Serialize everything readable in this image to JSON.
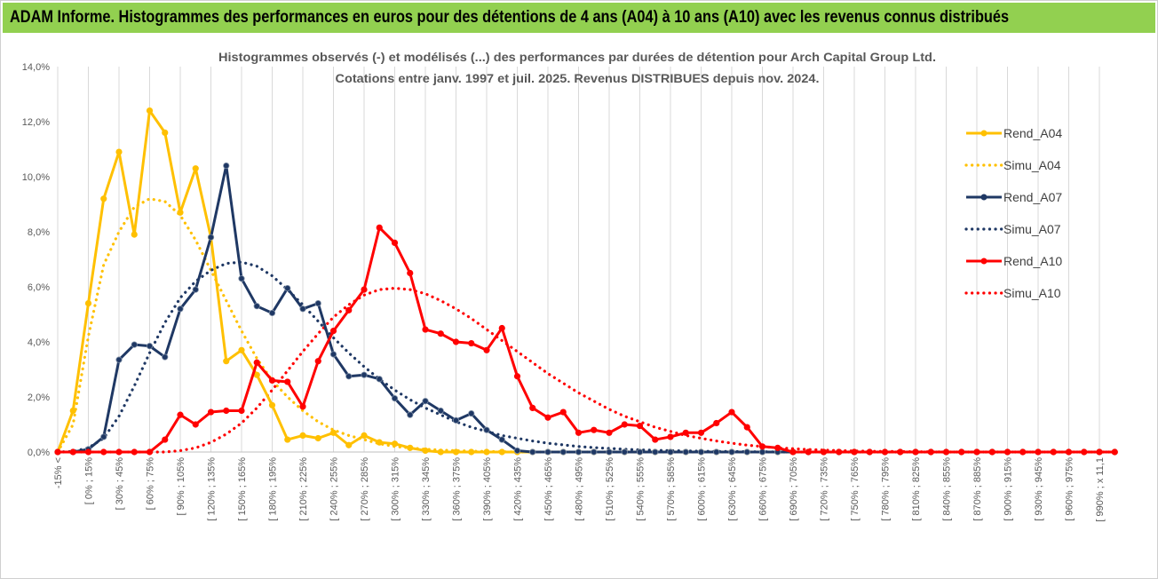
{
  "banner": {
    "title": "ADAM Informe. Histogrammes des performances en euros pour des détentions de 4 ans (A04) à 10 ans (A10) avec les revenus connus distribués"
  },
  "colors": {
    "banner_bg": "#92d050",
    "A04": "#ffc000",
    "A07": "#1f3864",
    "A10": "#ff0000",
    "grid": "#d9d9d9"
  },
  "chart_data": {
    "type": "line",
    "title": [
      "Histogrammes observés (-) et modélisés (...) des performances par durées de détention pour Arch Capital Group Ltd.",
      "Cotations entre janv. 1997 et juil. 2025. Revenus DISTRIBUES depuis nov. 2024."
    ],
    "xlabel": "",
    "ylabel": "",
    "ylim": [
      0,
      14
    ],
    "yticks": [
      "0,0%",
      "2,0%",
      "4,0%",
      "6,0%",
      "8,0%",
      "10,0%",
      "12,0%",
      "14,0%"
    ],
    "grid": "vertical",
    "legend_position": "right",
    "categories_labeled": [
      "-15% <",
      "[ 0% ; 15%",
      "[ 30% ; 45%",
      "[ 60% ; 75%",
      "[ 90% ; 105%",
      "[ 120% ; 135%",
      "[ 150% ; 165%",
      "[ 180% ; 195%",
      "[ 210% ; 225%",
      "[ 240% ; 255%",
      "[ 270% ; 285%",
      "[ 300% ; 315%",
      "[ 330% ; 345%",
      "[ 360% ; 375%",
      "[ 390% ; 405%",
      "[ 420% ; 435%",
      "[ 450% ; 465%",
      "[ 480% ; 495%",
      "[ 510% ; 525%",
      "[ 540% ; 555%",
      "[ 570% ; 585%",
      "[ 600% ; 615%",
      "[ 630% ; 645%",
      "[ 660% ; 675%",
      "[ 690% ; 705%",
      "[ 720% ; 735%",
      "[ 750% ; 765%",
      "[ 780% ; 795%",
      "[ 810% ; 825%",
      "[ 840% ; 855%",
      "[ 870% ; 885%",
      "[ 900% ; 915%",
      "[ 930% ; 945%",
      "[ 960% ; 975%",
      "[ 990% ; x 11,1"
    ],
    "n_points": 70,
    "series": [
      {
        "name": "Rend_A04",
        "style": "solid-markers",
        "color": "#ffc000",
        "values": [
          0,
          1.5,
          5.4,
          9.2,
          10.9,
          7.9,
          12.4,
          11.6,
          8.7,
          10.3,
          7.8,
          3.3,
          3.7,
          2.8,
          1.7,
          0.45,
          0.6,
          0.5,
          0.7,
          0.25,
          0.6,
          0.35,
          0.3,
          0.15,
          0.05,
          0,
          0,
          0,
          0,
          0,
          0,
          0,
          0,
          0,
          0,
          0,
          0,
          0,
          0,
          0,
          0,
          0,
          0,
          0,
          0,
          0,
          0,
          0,
          0,
          0,
          0,
          0,
          0,
          0,
          0,
          0,
          0,
          0,
          0,
          0,
          0,
          0,
          0,
          0,
          0,
          0,
          0,
          0,
          0,
          0
        ]
      },
      {
        "name": "Simu_A04",
        "style": "dotted",
        "color": "#ffc000",
        "values": [
          0,
          1.0,
          4.2,
          6.8,
          8.0,
          8.9,
          9.2,
          9.1,
          8.6,
          7.7,
          6.6,
          5.5,
          4.4,
          3.4,
          2.6,
          2.0,
          1.5,
          1.1,
          0.8,
          0.6,
          0.45,
          0.3,
          0.2,
          0.15,
          0.1,
          0.07,
          0.05,
          0.03,
          0.02,
          0.01,
          0,
          0,
          0,
          0,
          0,
          0,
          0,
          0,
          0,
          0,
          0,
          0,
          0,
          0,
          0,
          0,
          0,
          0,
          0,
          0,
          0,
          0,
          0,
          0,
          0,
          0,
          0,
          0,
          0,
          0,
          0,
          0,
          0,
          0,
          0,
          0,
          0,
          0,
          0,
          0
        ]
      },
      {
        "name": "Rend_A07",
        "style": "solid-markers",
        "color": "#1f3864",
        "values": [
          0,
          0,
          0.1,
          0.55,
          3.35,
          3.9,
          3.85,
          3.45,
          5.2,
          5.9,
          7.8,
          10.4,
          6.3,
          5.3,
          5.05,
          5.95,
          5.2,
          5.4,
          3.55,
          2.75,
          2.8,
          2.65,
          1.95,
          1.35,
          1.85,
          1.5,
          1.15,
          1.4,
          0.8,
          0.45,
          0.05,
          0,
          0,
          0,
          0,
          0,
          0,
          0,
          0,
          0,
          0,
          0,
          0,
          0,
          0,
          0,
          0,
          0,
          0,
          0,
          0,
          0,
          0,
          0,
          0,
          0,
          0,
          0,
          0,
          0,
          0,
          0,
          0,
          0,
          0,
          0,
          0,
          0,
          0,
          0
        ]
      },
      {
        "name": "Simu_A07",
        "style": "dotted",
        "color": "#1f3864",
        "values": [
          0,
          0.02,
          0.15,
          0.5,
          1.3,
          2.4,
          3.6,
          4.7,
          5.6,
          6.2,
          6.6,
          6.85,
          6.9,
          6.75,
          6.4,
          5.9,
          5.35,
          4.75,
          4.15,
          3.6,
          3.1,
          2.65,
          2.25,
          1.9,
          1.6,
          1.35,
          1.1,
          0.9,
          0.75,
          0.6,
          0.5,
          0.4,
          0.32,
          0.26,
          0.2,
          0.16,
          0.13,
          0.1,
          0.08,
          0.06,
          0.05,
          0.04,
          0.03,
          0.02,
          0.02,
          0.01,
          0.01,
          0,
          0,
          0,
          0,
          0,
          0,
          0,
          0,
          0,
          0,
          0,
          0,
          0,
          0,
          0,
          0,
          0,
          0,
          0,
          0,
          0,
          0,
          0
        ]
      },
      {
        "name": "Rend_A10",
        "style": "solid-markers",
        "color": "#ff0000",
        "values": [
          0,
          0,
          0,
          0,
          0,
          0,
          0,
          0.45,
          1.35,
          1.0,
          1.45,
          1.5,
          1.5,
          3.25,
          2.6,
          2.55,
          1.65,
          3.3,
          4.4,
          5.15,
          5.9,
          8.15,
          7.6,
          6.5,
          4.45,
          4.3,
          4.0,
          3.95,
          3.7,
          4.5,
          2.75,
          1.6,
          1.25,
          1.45,
          0.7,
          0.8,
          0.7,
          1.0,
          0.95,
          0.45,
          0.55,
          0.7,
          0.7,
          1.05,
          1.45,
          0.9,
          0.2,
          0.15,
          0,
          0,
          0,
          0,
          0,
          0,
          0,
          0,
          0,
          0,
          0,
          0,
          0,
          0,
          0,
          0,
          0,
          0,
          0,
          0,
          0,
          0
        ]
      },
      {
        "name": "Simu_A10",
        "style": "dotted",
        "color": "#ff0000",
        "values": [
          0,
          0,
          0,
          0,
          0,
          0,
          0,
          0,
          0.05,
          0.15,
          0.35,
          0.65,
          1.05,
          1.6,
          2.25,
          2.95,
          3.65,
          4.3,
          4.9,
          5.35,
          5.7,
          5.9,
          5.95,
          5.9,
          5.75,
          5.5,
          5.2,
          4.85,
          4.45,
          4.05,
          3.65,
          3.25,
          2.85,
          2.5,
          2.15,
          1.85,
          1.55,
          1.3,
          1.1,
          0.9,
          0.75,
          0.6,
          0.5,
          0.4,
          0.32,
          0.25,
          0.2,
          0.15,
          0.12,
          0.09,
          0.07,
          0.05,
          0.04,
          0.03,
          0.02,
          0.02,
          0.01,
          0.01,
          0,
          0,
          0,
          0,
          0,
          0,
          0,
          0,
          0,
          0,
          0,
          0
        ]
      }
    ]
  }
}
